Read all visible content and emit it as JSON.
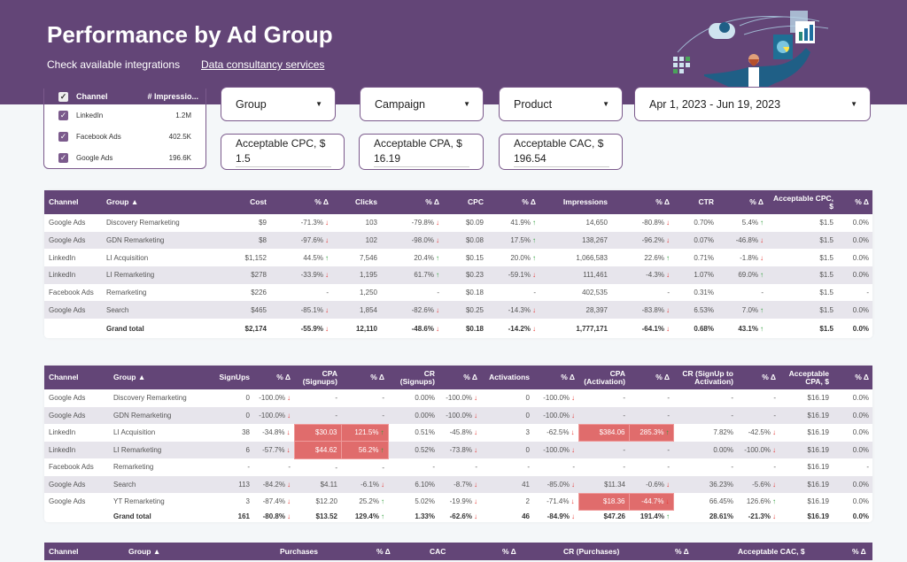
{
  "header": {
    "title": "Performance by Ad Group",
    "link_integrations": "Check available integrations",
    "link_consultancy": "Data consultancy services"
  },
  "colors": {
    "brand": "#634577",
    "highlight": "#e06c6c",
    "up": "#2e9d3a",
    "down": "#e53935"
  },
  "channel_filter": {
    "col_channel": "Channel",
    "col_impressions": "# Impressio...",
    "items": [
      {
        "label": "LinkedIn",
        "value": "1.2M",
        "checked": true
      },
      {
        "label": "Facebook Ads",
        "value": "402.5K",
        "checked": true
      },
      {
        "label": "Google Ads",
        "value": "196.6K",
        "checked": true
      }
    ]
  },
  "filters": {
    "group": "Group",
    "campaign": "Campaign",
    "product": "Product",
    "date_range": "Apr 1, 2023 - Jun 19, 2023"
  },
  "params": {
    "cpc_label": "Acceptable CPC, $",
    "cpc_value": "1.5",
    "cpa_label": "Acceptable CPA, $",
    "cpa_value": "16.19",
    "cac_label": "Acceptable CAC, $",
    "cac_value": "196.54"
  },
  "tables": {
    "t1": {
      "headers": [
        "Channel",
        "Group ▲",
        "Cost",
        "% Δ",
        "Clicks",
        "% Δ",
        "CPC",
        "% Δ",
        "Impressions",
        "% Δ",
        "CTR",
        "% Δ",
        "Acceptable CPC, $",
        "% Δ"
      ],
      "rows": [
        {
          "cells": [
            "Google Ads",
            "Discovery Remarketing",
            "$9",
            {
              "v": "-71.3%",
              "dir": "down"
            },
            "103",
            {
              "v": "-79.8%",
              "dir": "down"
            },
            "$0.09",
            {
              "v": "41.9%",
              "dir": "up"
            },
            "14,650",
            {
              "v": "-80.8%",
              "dir": "down"
            },
            "0.70%",
            {
              "v": "5.4%",
              "dir": "up"
            },
            "$1.5",
            "0.0%"
          ]
        },
        {
          "cells": [
            "Google Ads",
            "GDN Remarketing",
            "$8",
            {
              "v": "-97.6%",
              "dir": "down"
            },
            "102",
            {
              "v": "-98.0%",
              "dir": "down"
            },
            "$0.08",
            {
              "v": "17.5%",
              "dir": "up"
            },
            "138,267",
            {
              "v": "-96.2%",
              "dir": "down"
            },
            "0.07%",
            {
              "v": "-46.8%",
              "dir": "down"
            },
            "$1.5",
            "0.0%"
          ]
        },
        {
          "cells": [
            "LinkedIn",
            "LI Acquisition",
            "$1,152",
            {
              "v": "44.5%",
              "dir": "up"
            },
            "7,546",
            {
              "v": "20.4%",
              "dir": "up"
            },
            "$0.15",
            {
              "v": "20.0%",
              "dir": "up"
            },
            "1,066,583",
            {
              "v": "22.6%",
              "dir": "up"
            },
            "0.71%",
            {
              "v": "-1.8%",
              "dir": "down"
            },
            "$1.5",
            "0.0%"
          ]
        },
        {
          "cells": [
            "LinkedIn",
            "LI Remarketing",
            "$278",
            {
              "v": "-33.9%",
              "dir": "down"
            },
            "1,195",
            {
              "v": "61.7%",
              "dir": "up"
            },
            "$0.23",
            {
              "v": "-59.1%",
              "dir": "down"
            },
            "111,461",
            {
              "v": "-4.3%",
              "dir": "down"
            },
            "1.07%",
            {
              "v": "69.0%",
              "dir": "up"
            },
            "$1.5",
            "0.0%"
          ]
        },
        {
          "cells": [
            "Facebook Ads",
            "Remarketing",
            "$226",
            "-",
            "1,250",
            "-",
            "$0.18",
            "-",
            "402,535",
            "-",
            "0.31%",
            "-",
            "$1.5",
            "-"
          ]
        },
        {
          "cells": [
            "Google Ads",
            "Search",
            "$465",
            {
              "v": "-85.1%",
              "dir": "down"
            },
            "1,854",
            {
              "v": "-82.6%",
              "dir": "down"
            },
            "$0.25",
            {
              "v": "-14.3%",
              "dir": "down"
            },
            "28,397",
            {
              "v": "-83.8%",
              "dir": "down"
            },
            "6.53%",
            {
              "v": "7.0%",
              "dir": "up"
            },
            "$1.5",
            "0.0%"
          ]
        },
        {
          "total": true,
          "cells": [
            "",
            "Grand total",
            "$2,174",
            {
              "v": "-55.9%",
              "dir": "down"
            },
            "12,110",
            {
              "v": "-48.6%",
              "dir": "down"
            },
            "$0.18",
            {
              "v": "-14.2%",
              "dir": "down"
            },
            "1,777,171",
            {
              "v": "-64.1%",
              "dir": "down"
            },
            "0.68%",
            {
              "v": "43.1%",
              "dir": "up"
            },
            "$1.5",
            "0.0%"
          ]
        }
      ]
    },
    "t2": {
      "headers": [
        "Channel",
        "Group ▲",
        "SignUps",
        "% Δ",
        "CPA (Signups)",
        "% Δ",
        "CR (Signups)",
        "% Δ",
        "Activations",
        "% Δ",
        "CPA (Activation)",
        "% Δ",
        "CR (SignUp to Activation)",
        "% Δ",
        "Acceptable CPA, $",
        "% Δ"
      ],
      "rows": [
        {
          "cells": [
            "Google Ads",
            "Discovery Remarketing",
            "0",
            {
              "v": "-100.0%",
              "dir": "down"
            },
            "-",
            "-",
            "0.00%",
            {
              "v": "-100.0%",
              "dir": "down"
            },
            "0",
            {
              "v": "-100.0%",
              "dir": "down"
            },
            "-",
            "-",
            "-",
            "-",
            "$16.19",
            "0.0%"
          ]
        },
        {
          "cells": [
            "Google Ads",
            "GDN Remarketing",
            "0",
            {
              "v": "-100.0%",
              "dir": "down"
            },
            "-",
            "-",
            "0.00%",
            {
              "v": "-100.0%",
              "dir": "down"
            },
            "0",
            {
              "v": "-100.0%",
              "dir": "down"
            },
            "-",
            "-",
            "-",
            "-",
            "$16.19",
            "0.0%"
          ]
        },
        {
          "cells": [
            "LinkedIn",
            "LI Acquisition",
            "38",
            {
              "v": "-34.8%",
              "dir": "down"
            },
            {
              "v": "$30.03",
              "hl": true
            },
            {
              "v": "121.5%",
              "dir": "up",
              "hl": true
            },
            "0.51%",
            {
              "v": "-45.8%",
              "dir": "down"
            },
            "3",
            {
              "v": "-62.5%",
              "dir": "down"
            },
            {
              "v": "$384.06",
              "hl": true
            },
            {
              "v": "285.3%",
              "dir": "up",
              "hl": true
            },
            "7.82%",
            {
              "v": "-42.5%",
              "dir": "down"
            },
            "$16.19",
            "0.0%"
          ]
        },
        {
          "cells": [
            "LinkedIn",
            "LI Remarketing",
            "6",
            {
              "v": "-57.7%",
              "dir": "down"
            },
            {
              "v": "$44.62",
              "hl": true
            },
            {
              "v": "56.2%",
              "dir": "up",
              "hl": true
            },
            "0.52%",
            {
              "v": "-73.8%",
              "dir": "down"
            },
            "0",
            {
              "v": "-100.0%",
              "dir": "down"
            },
            "-",
            "-",
            "0.00%",
            {
              "v": "-100.0%",
              "dir": "down"
            },
            "$16.19",
            "0.0%"
          ]
        },
        {
          "cells": [
            "Facebook Ads",
            "Remarketing",
            "-",
            "-",
            "-",
            "-",
            "-",
            "-",
            "-",
            "-",
            "-",
            "-",
            "-",
            "-",
            "$16.19",
            "-"
          ]
        },
        {
          "cells": [
            "Google Ads",
            "Search",
            "113",
            {
              "v": "-84.2%",
              "dir": "down"
            },
            "$4.11",
            {
              "v": "-6.1%",
              "dir": "down"
            },
            "6.10%",
            {
              "v": "-8.7%",
              "dir": "down"
            },
            "41",
            {
              "v": "-85.0%",
              "dir": "down"
            },
            "$11.34",
            {
              "v": "-0.6%",
              "dir": "down"
            },
            "36.23%",
            {
              "v": "-5.6%",
              "dir": "down"
            },
            "$16.19",
            "0.0%"
          ]
        },
        {
          "cells": [
            "Google Ads",
            "YT Remarketing",
            "3",
            {
              "v": "-87.4%",
              "dir": "down"
            },
            "$12.20",
            {
              "v": "25.2%",
              "dir": "up"
            },
            "5.02%",
            {
              "v": "-19.9%",
              "dir": "down"
            },
            "2",
            {
              "v": "-71.4%",
              "dir": "down"
            },
            {
              "v": "$18.36",
              "hl": true
            },
            {
              "v": "-44.7%",
              "dir": "down",
              "hl": true
            },
            "66.45%",
            {
              "v": "126.6%",
              "dir": "up"
            },
            "$16.19",
            "0.0%"
          ]
        },
        {
          "total": true,
          "cells": [
            "",
            "Grand total",
            "161",
            {
              "v": "-80.8%",
              "dir": "down"
            },
            "$13.52",
            {
              "v": "129.4%",
              "dir": "up"
            },
            "1.33%",
            {
              "v": "-62.6%",
              "dir": "down"
            },
            "46",
            {
              "v": "-84.9%",
              "dir": "down"
            },
            "$47.26",
            {
              "v": "191.4%",
              "dir": "up"
            },
            "28.61%",
            {
              "v": "-21.3%",
              "dir": "down"
            },
            "$16.19",
            "0.0%"
          ]
        }
      ]
    },
    "t3": {
      "headers": [
        "Channel",
        "Group ▲",
        "Purchases",
        "% Δ",
        "CAC",
        "% Δ",
        "CR (Purchases)",
        "% Δ",
        "Acceptable CAC, $",
        "% Δ"
      ]
    }
  }
}
